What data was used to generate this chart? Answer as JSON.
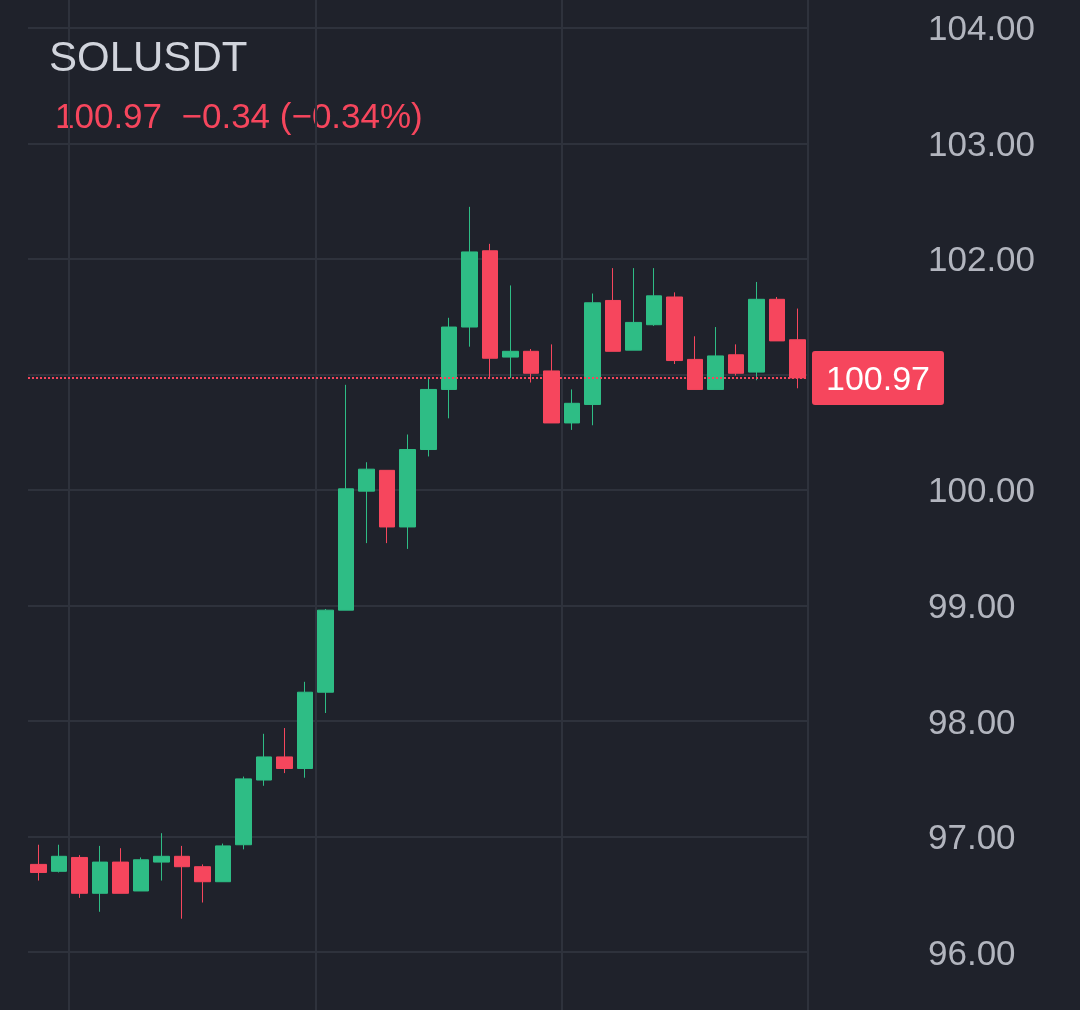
{
  "chart_data": {
    "type": "candlestick",
    "title": "SOLUSDT",
    "annotations": [
      "100.97  −0.34 (−0.34%)"
    ],
    "categories": [
      null,
      null,
      null,
      null,
      null,
      null,
      null,
      null,
      null,
      null,
      null,
      null,
      null,
      null,
      null,
      null,
      null,
      null,
      null,
      null,
      null,
      null,
      null,
      null,
      null,
      null,
      null,
      null,
      null,
      null,
      null,
      null,
      null,
      null,
      null,
      null,
      null,
      null
    ],
    "ohlc": [
      [
        96.76,
        96.93,
        96.62,
        96.69
      ],
      [
        96.7,
        96.93,
        96.69,
        96.83
      ],
      [
        96.82,
        96.84,
        96.47,
        96.51
      ],
      [
        96.51,
        96.92,
        96.35,
        96.78
      ],
      [
        96.78,
        96.9,
        96.51,
        96.51
      ],
      [
        96.53,
        96.82,
        96.53,
        96.8
      ],
      [
        96.78,
        97.03,
        96.62,
        96.83
      ],
      [
        96.83,
        96.92,
        96.29,
        96.74
      ],
      [
        96.74,
        96.76,
        96.43,
        96.61
      ],
      [
        96.61,
        96.94,
        96.61,
        96.92
      ],
      [
        96.93,
        97.52,
        96.89,
        97.5
      ],
      [
        97.49,
        97.89,
        97.44,
        97.69
      ],
      [
        97.69,
        97.94,
        97.55,
        97.59
      ],
      [
        97.59,
        98.34,
        97.51,
        98.25
      ],
      [
        98.25,
        98.97,
        98.07,
        98.96
      ],
      [
        98.96,
        100.91,
        98.96,
        100.01
      ],
      [
        99.99,
        100.24,
        99.54,
        100.18
      ],
      [
        100.17,
        100.17,
        99.54,
        99.68
      ],
      [
        99.68,
        100.48,
        99.49,
        100.35
      ],
      [
        100.35,
        100.97,
        100.29,
        100.87
      ],
      [
        100.87,
        101.49,
        100.62,
        101.41
      ],
      [
        101.41,
        102.45,
        101.24,
        102.06
      ],
      [
        102.07,
        102.13,
        100.97,
        101.14
      ],
      [
        101.15,
        101.77,
        100.97,
        101.2
      ],
      [
        101.2,
        101.22,
        100.93,
        101.01
      ],
      [
        101.03,
        101.26,
        100.58,
        100.58
      ],
      [
        100.58,
        100.87,
        100.52,
        100.75
      ],
      [
        100.74,
        101.7,
        100.56,
        101.62
      ],
      [
        101.64,
        101.92,
        101.2,
        101.2
      ],
      [
        101.21,
        101.92,
        101.21,
        101.45
      ],
      [
        101.43,
        101.92,
        101.42,
        101.68
      ],
      [
        101.67,
        101.71,
        101.09,
        101.12
      ],
      [
        101.13,
        101.33,
        100.87,
        100.87
      ],
      [
        100.87,
        101.41,
        100.87,
        101.16
      ],
      [
        101.17,
        101.26,
        100.99,
        101.01
      ],
      [
        101.02,
        101.8,
        100.95,
        101.65
      ],
      [
        101.65,
        101.67,
        101.29,
        101.29
      ],
      [
        101.3,
        101.57,
        100.88,
        100.97
      ]
    ],
    "colors": [
      "#f6465d",
      "#2ebd85",
      "#f6465d",
      "#2ebd85",
      "#f6465d",
      "#2ebd85",
      "#2ebd85",
      "#f6465d",
      "#f6465d",
      "#2ebd85",
      "#2ebd85",
      "#2ebd85",
      "#f6465d",
      "#2ebd85",
      "#2ebd85",
      "#2ebd85",
      "#2ebd85",
      "#f6465d",
      "#2ebd85",
      "#2ebd85",
      "#2ebd85",
      "#2ebd85",
      "#f6465d",
      "#2ebd85",
      "#f6465d",
      "#f6465d",
      "#2ebd85",
      "#2ebd85",
      "#f6465d",
      "#2ebd85",
      "#2ebd85",
      "#f6465d",
      "#f6465d",
      "#2ebd85",
      "#f6465d",
      "#2ebd85",
      "#f6465d",
      "#f6465d"
    ],
    "ylim": [
      95.5,
      104.24
    ],
    "yticks": [
      {
        "value": 96,
        "label": "96.00"
      },
      {
        "value": 97,
        "label": "97.00"
      },
      {
        "value": 98,
        "label": "98.00"
      },
      {
        "value": 99,
        "label": "99.00"
      },
      {
        "value": 100,
        "label": "100.00"
      },
      {
        "value": 101,
        "label": null
      },
      {
        "value": 102,
        "label": "102.00"
      },
      {
        "value": 103,
        "label": "103.00"
      },
      {
        "value": 104,
        "label": "104.00"
      }
    ],
    "ref_lines": [
      {
        "axis": "y",
        "value": 100.97,
        "label": "100.97",
        "color": "#f6465d",
        "line_style": "dotted"
      }
    ],
    "grid": true
  }
}
